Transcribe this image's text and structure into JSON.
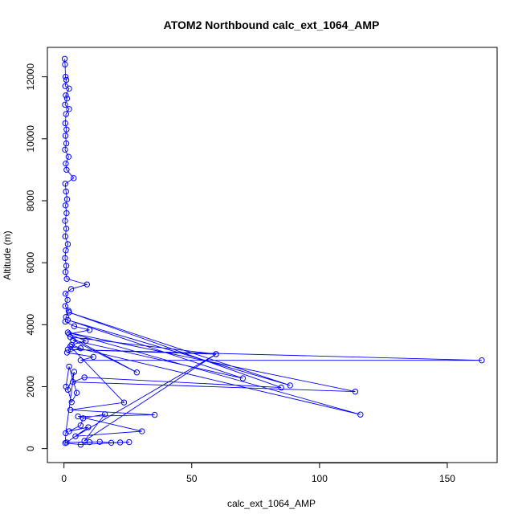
{
  "chart_data": {
    "type": "line",
    "title": "ATOM2 Northbound calc_ext_1064_AMP",
    "xlabel": "calc_ext_1064_AMP",
    "ylabel": "Altitude (m)",
    "xlim": [
      -6.5,
      169.5
    ],
    "ylim": [
      -450,
      12950
    ],
    "x_ticks": [
      0,
      50,
      100,
      150
    ],
    "y_ticks": [
      0,
      2000,
      4000,
      6000,
      8000,
      10000,
      12000
    ],
    "grid": false,
    "legend": "none",
    "series_color": "#0000ff",
    "marker": "open-circle",
    "series": [
      {
        "values": [
          {
            "x": 0.3,
            "y": 12580
          },
          {
            "x": 0.4,
            "y": 12400
          },
          {
            "x": 0.6,
            "y": 12000
          },
          {
            "x": 0.9,
            "y": 11900
          },
          {
            "x": 0.5,
            "y": 11700
          },
          {
            "x": 2.0,
            "y": 11620
          },
          {
            "x": 0.7,
            "y": 11400
          },
          {
            "x": 1.2,
            "y": 11300
          },
          {
            "x": 0.4,
            "y": 11100
          },
          {
            "x": 2.0,
            "y": 10960
          },
          {
            "x": 0.8,
            "y": 10800
          },
          {
            "x": 0.5,
            "y": 10500
          },
          {
            "x": 1.0,
            "y": 10300
          },
          {
            "x": 0.6,
            "y": 10100
          },
          {
            "x": 0.9,
            "y": 9850
          },
          {
            "x": 0.4,
            "y": 9650
          },
          {
            "x": 1.8,
            "y": 9420
          },
          {
            "x": 0.7,
            "y": 9200
          },
          {
            "x": 1.0,
            "y": 9000
          },
          {
            "x": 3.8,
            "y": 8730
          },
          {
            "x": 0.5,
            "y": 8550
          },
          {
            "x": 0.8,
            "y": 8300
          },
          {
            "x": 1.2,
            "y": 8050
          },
          {
            "x": 0.6,
            "y": 7850
          },
          {
            "x": 1.0,
            "y": 7600
          },
          {
            "x": 0.4,
            "y": 7350
          },
          {
            "x": 0.9,
            "y": 7100
          },
          {
            "x": 0.5,
            "y": 6850
          },
          {
            "x": 1.5,
            "y": 6600
          },
          {
            "x": 0.7,
            "y": 6400
          },
          {
            "x": 0.4,
            "y": 6150
          },
          {
            "x": 0.9,
            "y": 5900
          },
          {
            "x": 0.6,
            "y": 5700
          },
          {
            "x": 1.1,
            "y": 5480
          },
          {
            "x": 9.0,
            "y": 5300
          },
          {
            "x": 2.8,
            "y": 5150
          },
          {
            "x": 0.6,
            "y": 5000
          },
          {
            "x": 1.4,
            "y": 4800
          },
          {
            "x": 0.5,
            "y": 4600
          },
          {
            "x": 1.8,
            "y": 4450
          },
          {
            "x": 0.8,
            "y": 4250
          },
          {
            "x": 0.5,
            "y": 4100
          },
          {
            "x": 4.0,
            "y": 3950
          },
          {
            "x": 10.0,
            "y": 3830
          },
          {
            "x": 2.0,
            "y": 3700
          },
          {
            "x": 8.5,
            "y": 3480
          },
          {
            "x": 3.0,
            "y": 3350
          },
          {
            "x": 6.5,
            "y": 3240
          },
          {
            "x": 1.2,
            "y": 3100
          },
          {
            "x": 11.5,
            "y": 2960
          },
          {
            "x": 6.5,
            "y": 2850
          },
          {
            "x": 163.5,
            "y": 2850
          },
          {
            "x": 1.5,
            "y": 3200
          },
          {
            "x": 59.5,
            "y": 3050
          },
          {
            "x": 2.5,
            "y": 3600
          },
          {
            "x": 28.5,
            "y": 2460
          },
          {
            "x": 3.5,
            "y": 3500
          },
          {
            "x": 70.0,
            "y": 2270
          },
          {
            "x": 1.5,
            "y": 4150
          },
          {
            "x": 88.5,
            "y": 2040
          },
          {
            "x": 2.0,
            "y": 4400
          },
          {
            "x": 85.0,
            "y": 1970
          },
          {
            "x": 8.0,
            "y": 2300
          },
          {
            "x": 3.5,
            "y": 2150
          },
          {
            "x": 114.0,
            "y": 1840
          },
          {
            "x": 1.5,
            "y": 3750
          },
          {
            "x": 116.0,
            "y": 1100
          },
          {
            "x": 2.5,
            "y": 3300
          },
          {
            "x": 23.5,
            "y": 1490
          },
          {
            "x": 2.5,
            "y": 1250
          },
          {
            "x": 35.5,
            "y": 1090
          },
          {
            "x": 5.5,
            "y": 1040
          },
          {
            "x": 30.5,
            "y": 560
          },
          {
            "x": 4.5,
            "y": 400
          },
          {
            "x": 59.5,
            "y": 3050
          },
          {
            "x": 8.0,
            "y": 250
          },
          {
            "x": 16.0,
            "y": 1110
          },
          {
            "x": 7.5,
            "y": 980
          },
          {
            "x": 6.5,
            "y": 750
          },
          {
            "x": 2.0,
            "y": 560
          },
          {
            "x": 9.5,
            "y": 690
          },
          {
            "x": 1.0,
            "y": 200
          },
          {
            "x": 10.0,
            "y": 210
          },
          {
            "x": 14.0,
            "y": 220
          },
          {
            "x": 18.5,
            "y": 190
          },
          {
            "x": 22.0,
            "y": 200
          },
          {
            "x": 25.5,
            "y": 210
          },
          {
            "x": 6.5,
            "y": 130
          },
          {
            "x": 0.5,
            "y": 180
          },
          {
            "x": 0.7,
            "y": 500
          },
          {
            "x": 4.0,
            "y": 2480
          },
          {
            "x": 1.5,
            "y": 1900
          },
          {
            "x": 3.0,
            "y": 1500
          },
          {
            "x": 5.0,
            "y": 1800
          },
          {
            "x": 2.0,
            "y": 2650
          },
          {
            "x": 0.8,
            "y": 2000
          }
        ]
      }
    ]
  }
}
